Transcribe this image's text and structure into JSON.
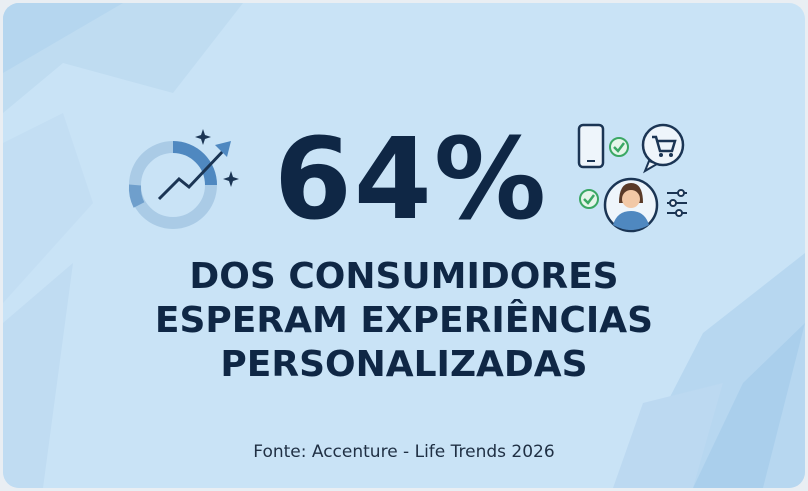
{
  "stat": {
    "value": "64%"
  },
  "headline": {
    "lines": [
      "DOS CONSUMIDORES",
      "ESPERAM EXPERIÊNCIAS",
      "PERSONALIZADAS"
    ]
  },
  "source": "Fonte: Accenture - Life Trends 2026",
  "icons": {
    "left": "growth-arrow-chart",
    "right": [
      "smartphone",
      "shopping-cart-bubble",
      "checkmarks",
      "person-avatar",
      "sliders"
    ]
  },
  "colors": {
    "background": "#c9e3f6",
    "text": "#0f2745",
    "accent_blue": "#4f88c0",
    "check_green": "#3ba864"
  }
}
